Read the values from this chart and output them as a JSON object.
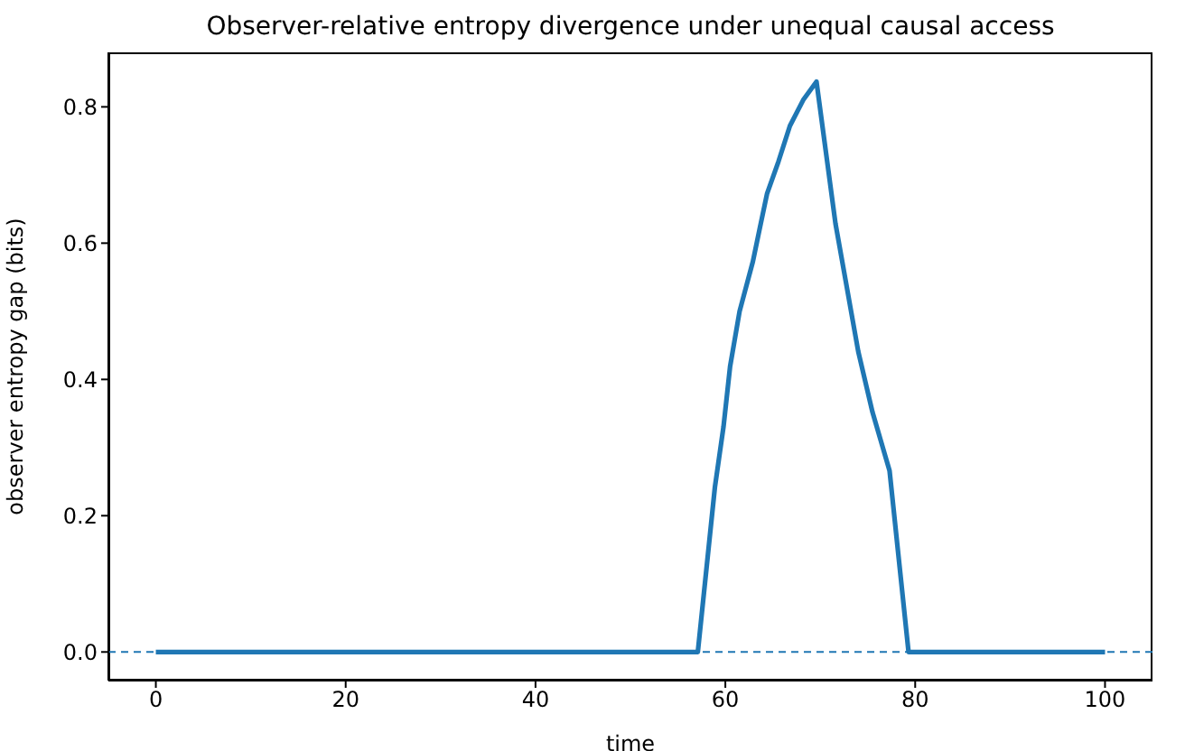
{
  "chart_data": {
    "type": "line",
    "title": "Observer-relative entropy divergence under unequal causal access",
    "xlabel": "time",
    "ylabel": "observer entropy gap (bits)",
    "x": [
      0,
      57.1,
      58.9,
      59.8,
      60.5,
      61.5,
      62.9,
      63.6,
      64.4,
      65.6,
      66.8,
      68.2,
      69.6,
      71.6,
      74.0,
      75.5,
      77.3,
      79.3,
      100
    ],
    "series": [
      {
        "color": "#1f77b4",
        "values": [
          0,
          0,
          0.242,
          0.33,
          0.419,
          0.5,
          0.573,
          0.62,
          0.673,
          0.72,
          0.772,
          0.81,
          0.837,
          0.629,
          0.441,
          0.352,
          0.266,
          0,
          0
        ]
      }
    ],
    "xlim": [
      -5,
      105
    ],
    "xticks": [
      0,
      20,
      40,
      60,
      80,
      100
    ],
    "ylim": [
      -0.042,
      0.88
    ],
    "yticks": [
      {
        "value": 0,
        "label": "0.0"
      },
      {
        "value": 0.2,
        "label": "0.2"
      },
      {
        "value": 0.4,
        "label": "0.4"
      },
      {
        "value": 0.6,
        "label": "0.6"
      },
      {
        "value": 0.8,
        "label": "0.8"
      }
    ],
    "ref_lines": [
      {
        "axis": "y",
        "value": 0,
        "color": "#1f77b4",
        "line_style": "dashed"
      }
    ],
    "grid": false,
    "legend": false,
    "marker": "none",
    "line_style": "solid"
  }
}
